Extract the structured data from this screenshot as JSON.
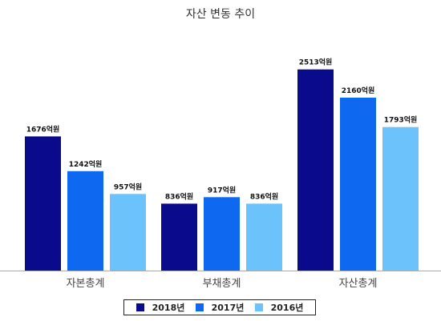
{
  "chart_data": {
    "type": "bar",
    "title": "자산 변동 추이",
    "xlabel": "",
    "ylabel": "",
    "categories": [
      "자본총계",
      "부채총계",
      "자산총계"
    ],
    "series": [
      {
        "name": "2018년",
        "color": "#0a0a8c",
        "values": [
          1676,
          836,
          2513
        ],
        "labels": [
          "1676억원",
          "836억원",
          "2513억원"
        ]
      },
      {
        "name": "2017년",
        "color": "#0f69f0",
        "values": [
          1242,
          917,
          2160
        ],
        "labels": [
          "1242억원",
          "917억원",
          "2160억원"
        ]
      },
      {
        "name": "2016년",
        "color": "#6cc2fa",
        "values": [
          957,
          836,
          1793
        ],
        "labels": [
          "957억원",
          "836억원",
          "1793억원"
        ]
      }
    ],
    "ylim": [
      0,
      2800
    ],
    "grid": false,
    "legend_position": "bottom"
  }
}
